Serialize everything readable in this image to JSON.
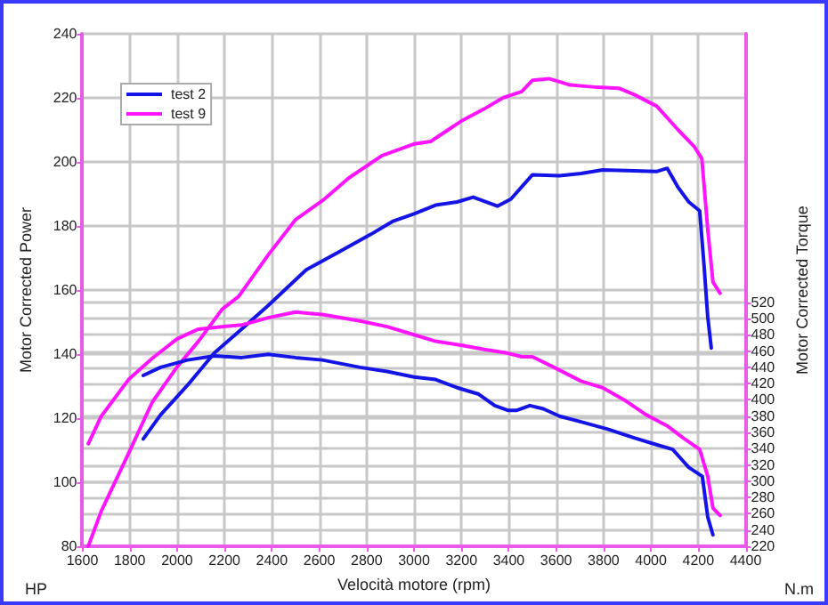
{
  "chart_data": {
    "type": "line",
    "xlabel": "Velocità motore (rpm)",
    "ylabel": "Motor Corrected Power",
    "y2label": "Motor Corrected Torque",
    "annotations": [
      "HP",
      "N.m"
    ],
    "xlim": [
      1600,
      4400
    ],
    "xticks": [
      1600,
      1800,
      2000,
      2200,
      2400,
      2600,
      2800,
      3000,
      3200,
      3400,
      3600,
      3800,
      4000,
      4200,
      4400
    ],
    "ylim": [
      80,
      240
    ],
    "yticks": [
      80,
      100,
      120,
      140,
      160,
      180,
      200,
      220,
      240
    ],
    "y2lim": [
      220,
      850
    ],
    "y2ticks": [
      220,
      240,
      260,
      280,
      300,
      320,
      340,
      360,
      380,
      400,
      420,
      440,
      460,
      480,
      500,
      520
    ],
    "grid": true,
    "legend": "top left",
    "marker": "none",
    "line_style": "solid",
    "series": [
      {
        "name": "test 2",
        "color": "#1414e6",
        "x": [
          1857,
          1930,
          2044,
          2158,
          2272,
          2385,
          2545,
          2681,
          2818,
          2909,
          3000,
          3091,
          3182,
          3250,
          3352,
          3409,
          3500,
          3614,
          3705,
          3796,
          3932,
          4023,
          4069,
          4115,
          4160,
          4206,
          4224,
          4240,
          4255
        ],
        "values": [
          113.5,
          121,
          130.3,
          140.4,
          147.8,
          155.2,
          166.3,
          171.8,
          177.4,
          181.4,
          183.8,
          186.5,
          187.5,
          189,
          186.2,
          188.4,
          196,
          195.7,
          196.4,
          197.5,
          197.2,
          197,
          198,
          192,
          187.5,
          184.7,
          168,
          151.6,
          141.9
        ]
      },
      {
        "name": "test 9",
        "color": "#ff14ff",
        "x": [
          1625,
          1680,
          1795,
          1895,
          2000,
          2090,
          2190,
          2260,
          2385,
          2500,
          2615,
          2725,
          2865,
          3000,
          3070,
          3205,
          3295,
          3375,
          3455,
          3500,
          3570,
          3660,
          3775,
          3865,
          3930,
          4025,
          4115,
          4185,
          4215,
          4240,
          4262,
          4292
        ],
        "values": [
          80,
          91,
          109,
          125,
          136,
          144,
          154,
          158,
          171,
          182,
          188,
          195,
          202,
          205.6,
          206.4,
          213,
          216.5,
          220,
          222,
          225.5,
          226,
          224,
          223.3,
          223,
          221,
          217.4,
          210,
          204.6,
          201,
          179,
          162.5,
          159
        ]
      },
      {
        "color": "#1414e6",
        "axis": "y2",
        "x": [
          1857,
          1930,
          2044,
          2158,
          2272,
          2385,
          2499,
          2613,
          2772,
          2886,
          3000,
          3091,
          3182,
          3273,
          3341,
          3398,
          3432,
          3489,
          3546,
          3614,
          3705,
          3818,
          3932,
          4023,
          4092,
          4160,
          4217,
          4240,
          4262
        ],
        "values": [
          430,
          440,
          449,
          454,
          452,
          456,
          452,
          449,
          440,
          435,
          428,
          425,
          415,
          407,
          393,
          387,
          387,
          393,
          389,
          380,
          373,
          364,
          353,
          345,
          339,
          317,
          306,
          256,
          234
        ]
      },
      {
        "color": "#ff14ff",
        "axis": "y2",
        "x": [
          1625,
          1680,
          1795,
          1895,
          2000,
          2090,
          2190,
          2272,
          2385,
          2499,
          2613,
          2772,
          2886,
          3000,
          3091,
          3204,
          3296,
          3386,
          3455,
          3500,
          3591,
          3705,
          3796,
          3887,
          3978,
          4069,
          4137,
          4206,
          4240,
          4262,
          4292
        ],
        "values": [
          346,
          380,
          425,
          451,
          475,
          487,
          490,
          492,
          501,
          508,
          505,
          497,
          490,
          480,
          472,
          467,
          462,
          458,
          453,
          453,
          440,
          423,
          415,
          400,
          382,
          368,
          353,
          339,
          306,
          267,
          258
        ]
      }
    ]
  }
}
